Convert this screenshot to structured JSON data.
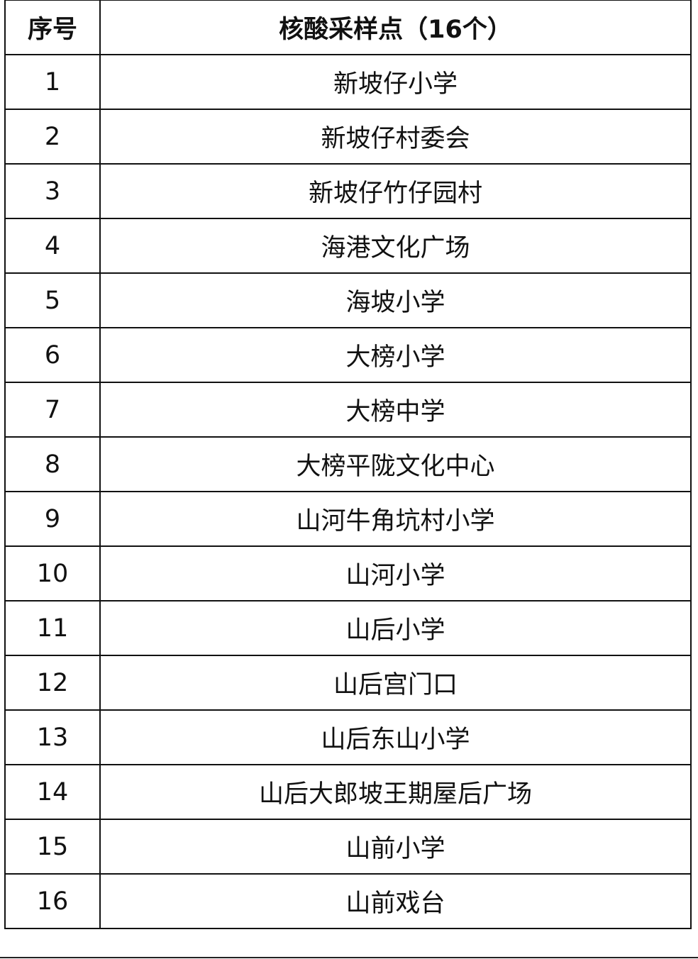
{
  "table": {
    "headers": [
      "序号",
      "核酸采样点（16个）"
    ],
    "rows": [
      [
        "1",
        "新坡仔小学"
      ],
      [
        "2",
        "新坡仔村委会"
      ],
      [
        "3",
        "新坡仔竹仔园村"
      ],
      [
        "4",
        "海港文化广场"
      ],
      [
        "5",
        "海坡小学"
      ],
      [
        "6",
        "大榜小学"
      ],
      [
        "7",
        "大榜中学"
      ],
      [
        "8",
        "大榜平陇文化中心"
      ],
      [
        "9",
        "山河牛角坑村小学"
      ],
      [
        "10",
        "山河小学"
      ],
      [
        "11",
        "山后小学"
      ],
      [
        "12",
        "山后宫门口"
      ],
      [
        "13",
        "山后东山小学"
      ],
      [
        "14",
        "山后大郎坡王期屋后广场"
      ],
      [
        "15",
        "山前小学"
      ],
      [
        "16",
        "山前戏台"
      ]
    ]
  }
}
